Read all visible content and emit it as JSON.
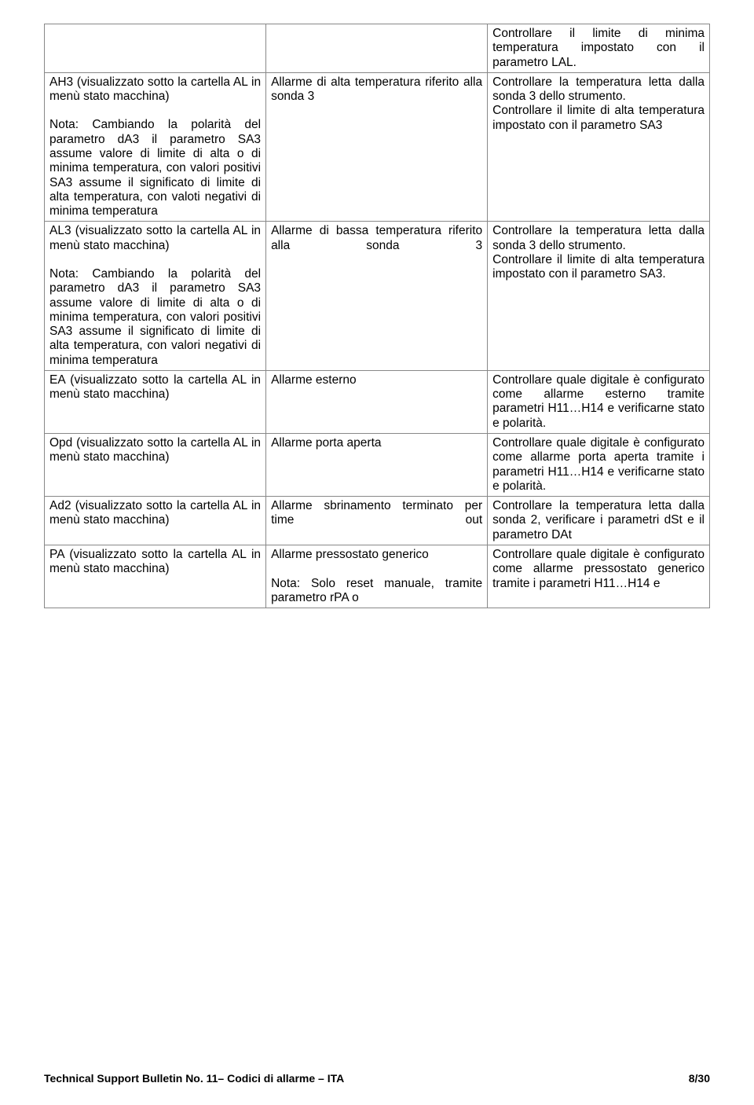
{
  "rows": [
    {
      "c1": "",
      "c2": "",
      "c3": "Controllare il limite di minima temperatura impostato con il parametro LAL."
    },
    {
      "c1a": "AH3 (visualizzato sotto la cartella AL in menù stato macchina)",
      "c1b": "Nota: Cambiando la polarità del parametro dA3 il parametro SA3 assume valore di limite di alta o di minima temperatura, con valori positivi SA3 assume il significato di limite di alta temperatura, con valoti negativi di minima temperatura",
      "c2": "Allarme di alta temperatura riferito alla sonda 3",
      "c3": "Controllare la temperatura letta dalla sonda 3 dello strumento.\nControllare il limite di alta temperatura impostato con il parametro SA3"
    },
    {
      "c1a": "AL3 (visualizzato sotto la cartella AL in menù stato macchina)",
      "c1b": "Nota: Cambiando la polarità del parametro dA3 il parametro SA3 assume valore di limite di alta o di minima temperatura, con valori positivi SA3 assume il significato di limite di alta temperatura, con valori negativi di minima temperatura",
      "c2": "Allarme di bassa temperatura riferito alla sonda 3",
      "c3": "Controllare la temperatura letta dalla sonda 3 dello strumento.\nControllare il limite di alta temperatura impostato con il parametro SA3."
    },
    {
      "c1": "EA (visualizzato sotto la cartella AL in menù stato macchina)",
      "c2": "Allarme esterno",
      "c3": "Controllare quale digitale è configurato come allarme esterno tramite parametri H11…H14 e verificarne stato e polarità."
    },
    {
      "c1": "Opd (visualizzato sotto la cartella AL in menù stato macchina)",
      "c2": "Allarme porta aperta",
      "c3": "Controllare quale digitale è configurato come allarme porta aperta tramite i parametri H11…H14 e verificarne stato e polarità."
    },
    {
      "c1": "Ad2 (visualizzato sotto la cartella AL in menù stato macchina)",
      "c2": "Allarme sbrinamento terminato per time out",
      "c3": "Controllare la temperatura letta dalla sonda 2, verificare i parametri dSt e il parametro DAt"
    },
    {
      "c1": "PA (visualizzato sotto la cartella AL in menù stato macchina)",
      "c2": "Allarme pressostato generico\n\nNota: Solo reset manuale, tramite parametro rPA o",
      "c3": "Controllare quale digitale è configurato come allarme pressostato generico tramite i parametri H11…H14 e"
    }
  ],
  "footer": {
    "left": "Technical Support Bulletin  No. 11– Codici di allarme – ITA",
    "right": "8/30"
  }
}
